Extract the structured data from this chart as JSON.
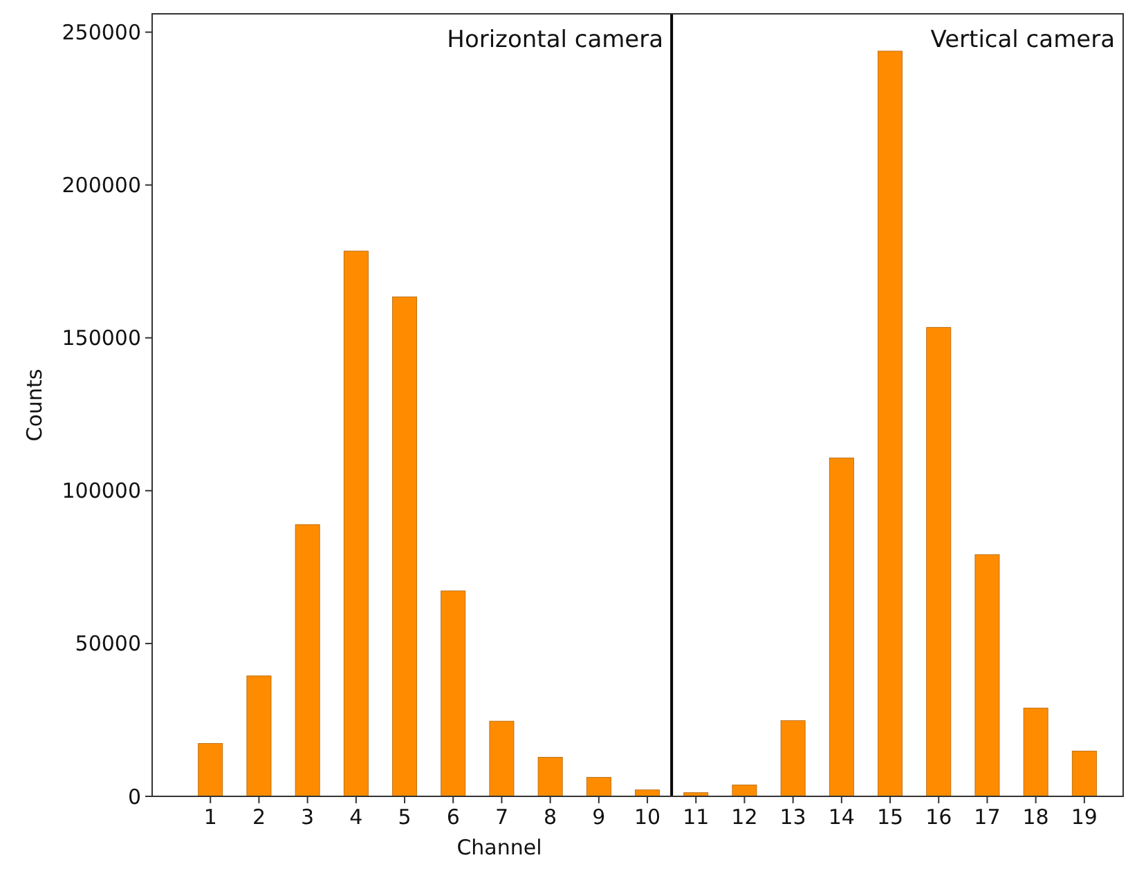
{
  "chart_data": {
    "type": "bar",
    "xlabel": "Channel",
    "ylabel": "Counts",
    "x": [
      1,
      2,
      3,
      4,
      5,
      6,
      7,
      8,
      9,
      10,
      11,
      12,
      13,
      14,
      15,
      16,
      17,
      18,
      19
    ],
    "values": [
      17300,
      39400,
      88900,
      178400,
      163400,
      67200,
      24600,
      12800,
      6200,
      2100,
      1200,
      3700,
      24800,
      110700,
      243800,
      153400,
      79100,
      28900,
      14800
    ],
    "color": "#ff8c00",
    "xlim": [
      -0.2,
      19.8
    ],
    "xticks": [
      1,
      2,
      3,
      4,
      5,
      6,
      7,
      8,
      9,
      10,
      11,
      12,
      13,
      14,
      15,
      16,
      17,
      18,
      19
    ],
    "ylim": [
      0,
      256000
    ],
    "yticks": [
      0,
      50000,
      100000,
      150000,
      200000,
      250000
    ],
    "ref_lines": [
      {
        "axis": "x",
        "value": 10.5,
        "color": "#000000"
      }
    ],
    "annotations": [
      "Horizontal camera",
      "Vertical camera"
    ]
  }
}
